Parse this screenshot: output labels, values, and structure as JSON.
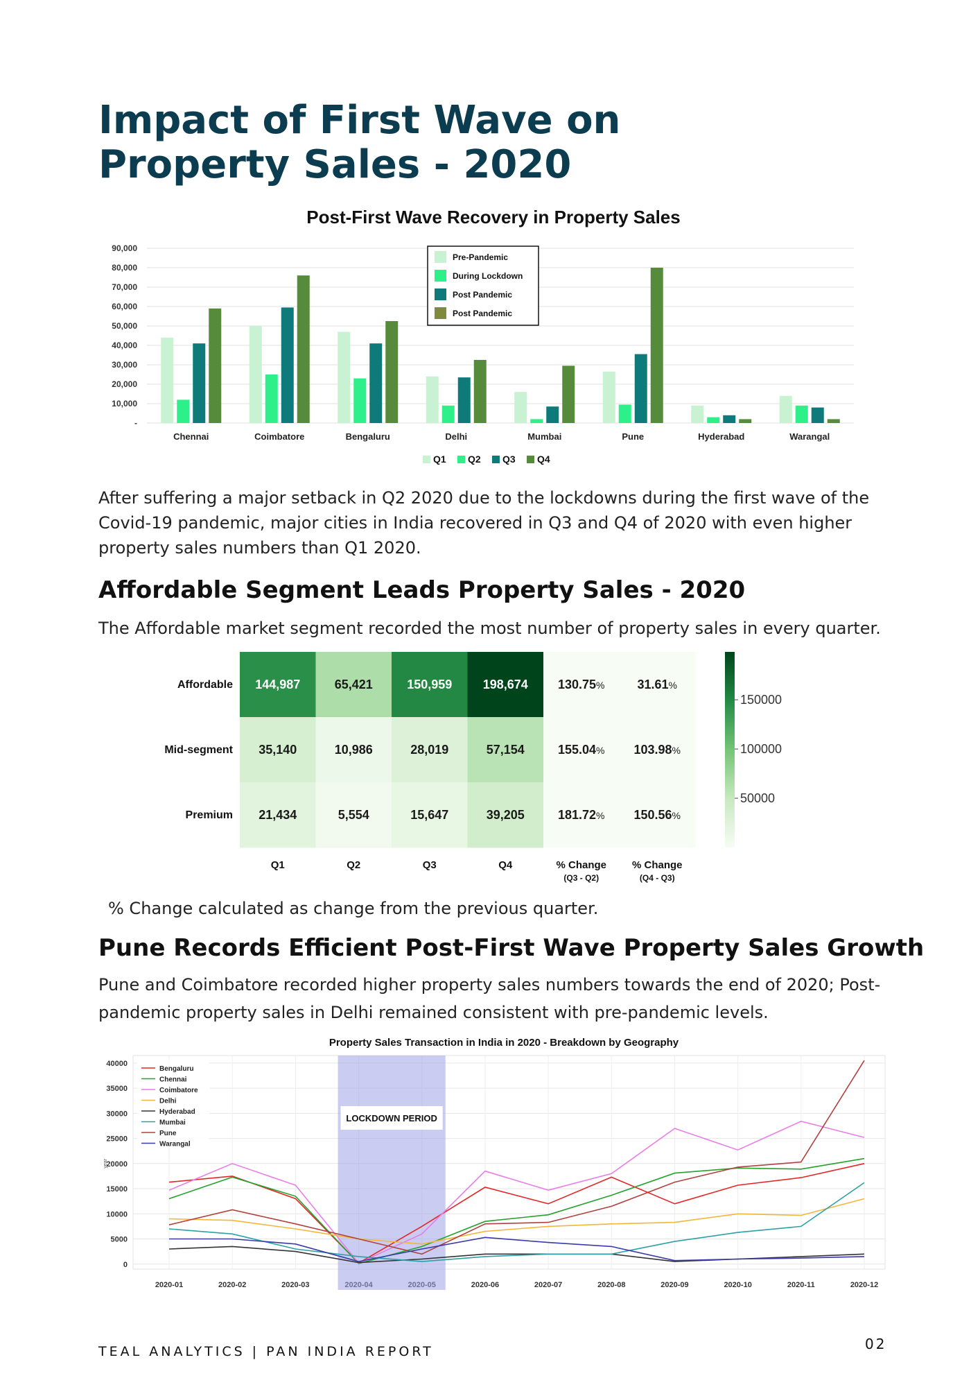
{
  "page": {
    "title_line1": "Impact of First Wave on",
    "title_line2": "Property Sales - 2020",
    "para1": "After suffering a major setback in Q2 2020 due to the lockdowns during the first wave of the Covid-19 pandemic, major cities in India recovered in Q3 and Q4 of 2020 with even higher property sales numbers than Q1 2020.",
    "section2_title": "Affordable Segment Leads Property Sales - 2020",
    "section2_text": "The Affordable market segment recorded the most number of property sales in every quarter.",
    "heatmap_note": "% Change calculated as change from the previous quarter.",
    "section3_title": "Pune Records Efficient Post-First Wave Property Sales Growth",
    "section3_text": "Pune and Coimbatore recorded higher property sales numbers towards the end of 2020; Post-pandemic property sales in Delhi remained consistent with pre-pandemic levels.",
    "footer": "TEAL ANALYTICS | PAN INDIA REPORT",
    "page_number": "02"
  },
  "chart_data": [
    {
      "type": "bar",
      "title": "Post-First Wave Recovery in Property Sales",
      "categories": [
        "Chennai",
        "Coimbatore",
        "Bengaluru",
        "Delhi",
        "Mumbai",
        "Pune",
        "Hyderabad",
        "Warangal"
      ],
      "series": [
        {
          "name": "Q1",
          "color": "#c9f2d2",
          "values": [
            44000,
            50000,
            47000,
            24000,
            16000,
            26500,
            9000,
            14000
          ]
        },
        {
          "name": "Q2",
          "color": "#2ef08a",
          "values": [
            12000,
            25000,
            23000,
            9000,
            2000,
            9500,
            3000,
            9000
          ]
        },
        {
          "name": "Q3",
          "color": "#0e7a7a",
          "values": [
            41000,
            59500,
            41000,
            23500,
            8500,
            35500,
            4000,
            8000
          ]
        },
        {
          "name": "Q4",
          "color": "#558b3a",
          "values": [
            59000,
            76000,
            52500,
            32500,
            29500,
            80000,
            2000,
            2000
          ]
        }
      ],
      "inner_legend": [
        {
          "label": "Pre-Pandemic",
          "color": "#c9f2d2"
        },
        {
          "label": "During Lockdown",
          "color": "#2ef08a"
        },
        {
          "label": "Post Pandemic",
          "color": "#0e7a7a"
        },
        {
          "label": "Post Pandemic",
          "color": "#7f8a3c"
        }
      ],
      "y_ticks": [
        {
          "value": 0,
          "label": "-"
        },
        {
          "value": 10000,
          "label": "10,000"
        },
        {
          "value": 20000,
          "label": "20,000"
        },
        {
          "value": 30000,
          "label": "30,000"
        },
        {
          "value": 40000,
          "label": "40,000"
        },
        {
          "value": 50000,
          "label": "50,000"
        },
        {
          "value": 60000,
          "label": "60,000"
        },
        {
          "value": 70000,
          "label": "70,000"
        },
        {
          "value": 80000,
          "label": "80,000"
        },
        {
          "value": 90000,
          "label": "90,000"
        }
      ],
      "ylim": [
        0,
        90000
      ],
      "grid": true,
      "legend_position": "bottom"
    },
    {
      "type": "heatmap",
      "rows": [
        "Affordable",
        "Mid-segment",
        "Premium"
      ],
      "columns": [
        "Q1",
        "Q2",
        "Q3",
        "Q4"
      ],
      "values": [
        [
          144987,
          65421,
          150959,
          198674
        ],
        [
          35140,
          10986,
          28019,
          57154
        ],
        [
          21434,
          5554,
          15647,
          39205
        ]
      ],
      "labels": [
        [
          "144,987",
          "65,421",
          "150,959",
          "198,674"
        ],
        [
          "35,140",
          "10,986",
          "28,019",
          "57,154"
        ],
        [
          "21,434",
          "5,554",
          "15,647",
          "39,205"
        ]
      ],
      "change_columns": [
        {
          "line1": "% Change",
          "line2": "(Q3 - Q2)"
        },
        {
          "line1": "% Change",
          "line2": "(Q4 - Q3)"
        }
      ],
      "change_values": [
        [
          "130.75",
          "31.61"
        ],
        [
          "155.04",
          "103.98"
        ],
        [
          "181.72",
          "150.56"
        ]
      ],
      "percent_sign": "%",
      "colorbar_ticks": [
        {
          "value": 150000,
          "label": "150000"
        },
        {
          "value": 100000,
          "label": "100000"
        },
        {
          "value": 50000,
          "label": "50000"
        }
      ],
      "colorbar_range": [
        0,
        198674
      ]
    },
    {
      "type": "line",
      "title": "Property Sales Transaction in India in 2020 - Breakdown by Geography",
      "x": [
        "2020-01",
        "2020-02",
        "2020-03",
        "2020-04",
        "2020-05",
        "2020-06",
        "2020-07",
        "2020-08",
        "2020-09",
        "2020-10",
        "2020-11",
        "2020-12"
      ],
      "series": [
        {
          "name": "Bengaluru",
          "color": "#e32626",
          "values": [
            16300,
            17500,
            13000,
            200,
            7500,
            15300,
            12000,
            17300,
            12000,
            15700,
            17200,
            20000
          ]
        },
        {
          "name": "Chennai",
          "color": "#25a12e",
          "values": [
            13000,
            17300,
            13500,
            100,
            3500,
            8500,
            9800,
            13700,
            18100,
            19100,
            18900,
            21000
          ]
        },
        {
          "name": "Coimbatore",
          "color": "#e87de8",
          "values": [
            14700,
            20000,
            15700,
            200,
            6000,
            18500,
            14700,
            18000,
            27000,
            22700,
            28400,
            25200
          ]
        },
        {
          "name": "Delhi",
          "color": "#f3b638",
          "values": [
            9000,
            8700,
            7000,
            5000,
            4000,
            6500,
            7500,
            8000,
            8300,
            10000,
            9700,
            13000
          ]
        },
        {
          "name": "Hyderabad",
          "color": "#333333",
          "values": [
            3000,
            3500,
            2500,
            300,
            1000,
            2000,
            2000,
            2000,
            500,
            1000,
            1500,
            2000
          ]
        },
        {
          "name": "Mumbai",
          "color": "#2aa0a6",
          "values": [
            7000,
            6000,
            3000,
            1500,
            500,
            1500,
            2000,
            2000,
            4500,
            6300,
            7500,
            16200
          ]
        },
        {
          "name": "Pune",
          "color": "#b0413e",
          "values": [
            7800,
            10800,
            8000,
            5000,
            2000,
            8000,
            8300,
            11500,
            16300,
            19300,
            20300,
            40500
          ]
        },
        {
          "name": "Warangal",
          "color": "#3a3aa8",
          "values": [
            5000,
            5000,
            4000,
            500,
            3000,
            5300,
            4300,
            3500,
            700,
            1000,
            1200,
            1500
          ]
        }
      ],
      "y_ticks": [
        0,
        5000,
        10000,
        15000,
        20000,
        25000,
        30000,
        35000,
        40000
      ],
      "ylim": [
        -1000,
        41500
      ],
      "ylabel": "year",
      "shaded_region": {
        "from": "2020-04",
        "to": "2020-05",
        "label": "LOCKDOWN PERIOD"
      },
      "grid": true,
      "legend_position": "top-left"
    }
  ]
}
